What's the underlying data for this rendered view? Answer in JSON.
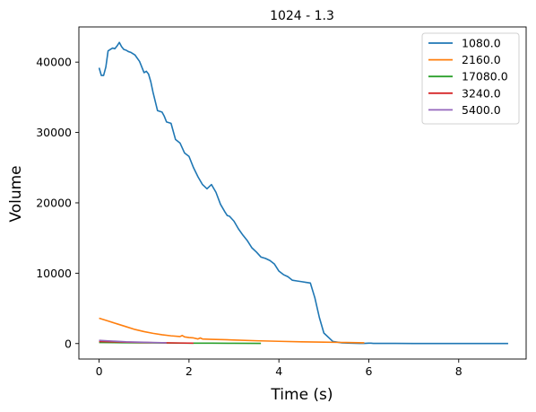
{
  "chart_data": {
    "type": "line",
    "title": "1024 - 1.3",
    "xlabel": "Time (s)",
    "ylabel": "Volume",
    "xlim": [
      -0.45,
      9.5
    ],
    "ylim": [
      -2200,
      45000
    ],
    "xticks": [
      0,
      2,
      4,
      6,
      8
    ],
    "yticks": [
      0,
      10000,
      20000,
      30000,
      40000
    ],
    "grid": false,
    "legend_position": "top-right",
    "series": [
      {
        "name": "1080.0",
        "color": "#1f77b4",
        "x": [
          0.0,
          0.05,
          0.1,
          0.15,
          0.2,
          0.25,
          0.3,
          0.35,
          0.4,
          0.45,
          0.5,
          0.55,
          0.6,
          0.65,
          0.7,
          0.8,
          0.9,
          1.0,
          1.05,
          1.1,
          1.15,
          1.2,
          1.3,
          1.4,
          1.45,
          1.5,
          1.6,
          1.7,
          1.8,
          1.9,
          2.0,
          2.1,
          2.2,
          2.3,
          2.4,
          2.5,
          2.6,
          2.7,
          2.8,
          2.85,
          2.9,
          3.0,
          3.1,
          3.2,
          3.3,
          3.4,
          3.5,
          3.6,
          3.7,
          3.8,
          3.9,
          4.0,
          4.1,
          4.2,
          4.3,
          4.4,
          4.5,
          4.6,
          4.7,
          4.8,
          4.9,
          5.0,
          5.2,
          5.4,
          5.6,
          5.8,
          5.9,
          5.95,
          6.0,
          6.05,
          6.1,
          6.2,
          6.4,
          6.6,
          7.0,
          7.5,
          8.0,
          8.5,
          9.1
        ],
        "values": [
          39200,
          38100,
          38100,
          39300,
          41600,
          41800,
          42000,
          41900,
          42300,
          42800,
          42200,
          41800,
          41700,
          41500,
          41400,
          41000,
          40100,
          38500,
          38700,
          38300,
          37200,
          35700,
          33100,
          32900,
          32300,
          31500,
          31300,
          29000,
          28500,
          27100,
          26600,
          25000,
          23700,
          22600,
          22000,
          22600,
          21500,
          19800,
          18700,
          18200,
          18100,
          17400,
          16300,
          15400,
          14600,
          13600,
          13000,
          12300,
          12100,
          11800,
          11300,
          10300,
          9800,
          9500,
          9000,
          8900,
          8800,
          8700,
          8600,
          6500,
          3700,
          1500,
          300,
          100,
          50,
          30,
          20,
          40,
          60,
          50,
          30,
          20,
          30,
          20,
          10,
          10,
          10,
          10,
          10
        ]
      },
      {
        "name": "2160.0",
        "color": "#ff7f0e",
        "x": [
          0.0,
          0.2,
          0.4,
          0.6,
          0.8,
          1.0,
          1.2,
          1.4,
          1.6,
          1.8,
          1.85,
          1.9,
          2.0,
          2.1,
          2.2,
          2.25,
          2.3,
          2.5,
          2.8,
          3.0,
          3.5,
          4.0,
          4.5,
          5.0,
          5.5,
          5.9
        ],
        "values": [
          3600,
          3200,
          2800,
          2400,
          2000,
          1700,
          1450,
          1250,
          1100,
          1000,
          1150,
          950,
          850,
          800,
          650,
          800,
          650,
          600,
          550,
          500,
          400,
          320,
          250,
          200,
          150,
          100
        ]
      },
      {
        "name": "17080.0",
        "color": "#2ca02c",
        "x": [
          0.0,
          0.5,
          1.0,
          1.5,
          2.0,
          2.5,
          3.0,
          3.6
        ],
        "values": [
          150,
          120,
          100,
          80,
          60,
          50,
          40,
          30
        ]
      },
      {
        "name": "3240.0",
        "color": "#d62728",
        "x": [
          0.0,
          0.3,
          0.6,
          0.9,
          1.2,
          1.5,
          1.8,
          2.1
        ],
        "values": [
          300,
          250,
          200,
          170,
          130,
          100,
          80,
          60
        ]
      },
      {
        "name": "5400.0",
        "color": "#9467bd",
        "x": [
          0.0,
          0.3,
          0.6,
          0.9,
          1.2,
          1.5
        ],
        "values": [
          450,
          350,
          250,
          200,
          150,
          110
        ]
      }
    ]
  }
}
